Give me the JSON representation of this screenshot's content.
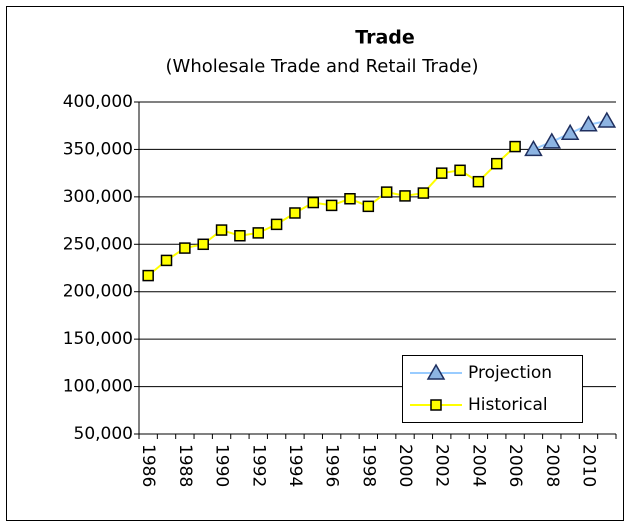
{
  "chart_data": {
    "type": "line",
    "title": "Trade",
    "subtitle": "(Wholesale Trade and Retail Trade)",
    "categories": [
      "1986",
      null,
      "1988",
      null,
      "1990",
      null,
      "1992",
      null,
      "1994",
      null,
      "1996",
      null,
      "1998",
      null,
      "2000",
      null,
      "2002",
      null,
      "2004",
      null,
      "2006",
      null,
      "2008",
      null,
      "2010",
      null
    ],
    "series": [
      {
        "name": "Projection",
        "color": "#99ccff",
        "marker": "triangle",
        "marker_color": "#8db4e2",
        "values": [
          null,
          null,
          null,
          null,
          null,
          null,
          null,
          null,
          null,
          null,
          null,
          null,
          null,
          null,
          null,
          null,
          null,
          null,
          null,
          null,
          null,
          350000,
          358000,
          367000,
          376000,
          380000
        ]
      },
      {
        "name": "Historical",
        "color": "#ffff00",
        "marker": "square",
        "marker_color": "#ffff00",
        "values": [
          217000,
          233000,
          246000,
          250000,
          265000,
          259000,
          262000,
          271000,
          283000,
          294000,
          291000,
          298000,
          290000,
          305000,
          301000,
          304000,
          325000,
          328000,
          316000,
          335000,
          353000,
          null,
          null,
          null,
          null,
          null
        ]
      }
    ],
    "ylim": [
      50000,
      400000
    ],
    "yticks": [
      {
        "value": 50000,
        "label": "50,000"
      },
      {
        "value": 100000,
        "label": "100,000"
      },
      {
        "value": 150000,
        "label": "150,000"
      },
      {
        "value": 200000,
        "label": "200,000"
      },
      {
        "value": 250000,
        "label": "250,000"
      },
      {
        "value": 300000,
        "label": "300,000"
      },
      {
        "value": 350000,
        "label": "350,000"
      },
      {
        "value": 400000,
        "label": "400,000"
      }
    ],
    "grid": true,
    "legend": "lower right"
  }
}
